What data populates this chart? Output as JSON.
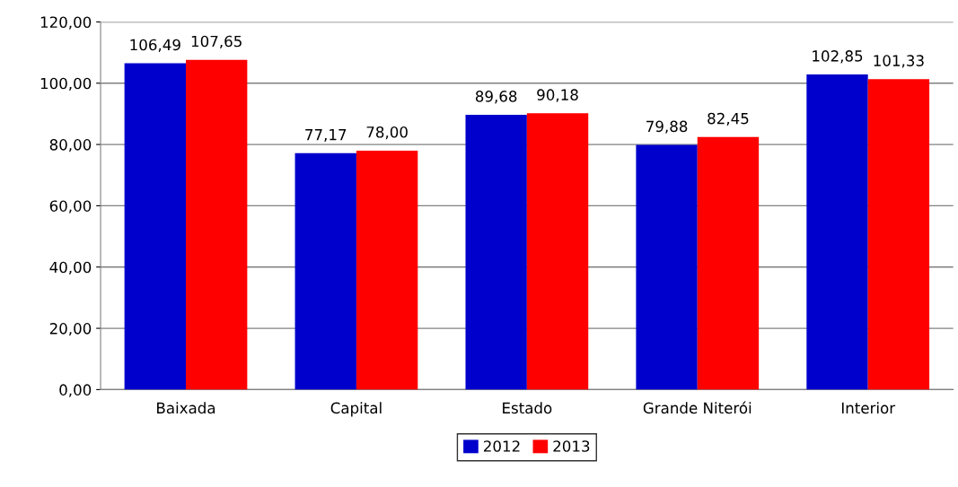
{
  "chart_data": {
    "type": "bar",
    "categories": [
      "Baixada",
      "Capital",
      "Estado",
      "Grande Niterói",
      "Interior"
    ],
    "series": [
      {
        "name": "2012",
        "color": "#0000cc",
        "values": [
          106.49,
          77.17,
          89.68,
          79.88,
          102.85
        ],
        "value_labels": [
          "106,49",
          "77,17",
          "89,68",
          "79,88",
          "102,85"
        ]
      },
      {
        "name": "2013",
        "color": "#ff0000",
        "values": [
          107.65,
          78.0,
          90.18,
          82.45,
          101.33
        ],
        "value_labels": [
          "107,65",
          "78,00",
          "90,18",
          "82,45",
          "101,33"
        ]
      }
    ],
    "ylim": [
      0,
      120
    ],
    "yticks": [
      {
        "value": 0,
        "label": "0,00"
      },
      {
        "value": 20,
        "label": "20,00"
      },
      {
        "value": 40,
        "label": "40,00"
      },
      {
        "value": 60,
        "label": "60,00"
      },
      {
        "value": 80,
        "label": "80,00"
      },
      {
        "value": 100,
        "label": "100,00"
      },
      {
        "value": 120,
        "label": "120,00"
      }
    ],
    "grid": "y",
    "legend": "bottom"
  }
}
